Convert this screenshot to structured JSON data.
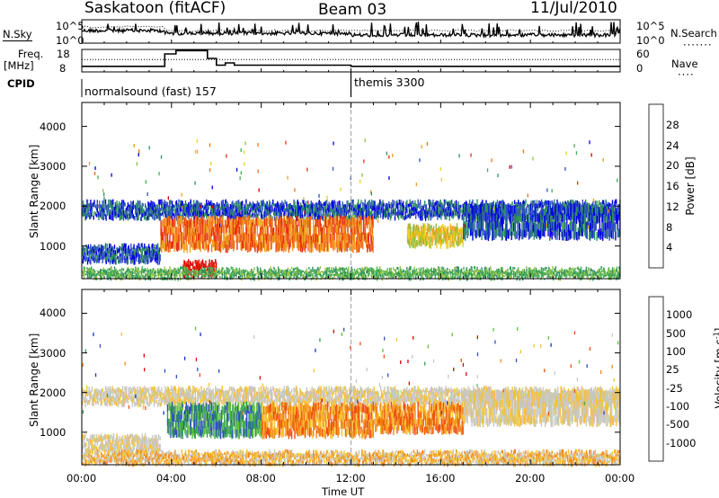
{
  "header": {
    "station": "Saskatoon (fitACF)",
    "beam": "Beam 03",
    "date": "11/Jul/2010"
  },
  "top_panels": {
    "nsky_label": "N.Sky",
    "nsky_ticks": [
      "10^5",
      "10^0"
    ],
    "nsearch_label": "N.Search",
    "nsearch_ticks": [
      "10^5",
      "10^0"
    ],
    "freq_label_1": "Freq.",
    "freq_label_2": "[MHz]",
    "freq_ticks": [
      "18",
      "8"
    ],
    "nave_label": "Nave",
    "nave_ticks": [
      "60",
      "0"
    ],
    "cpid_label": "CPID",
    "cpid_segments": [
      {
        "label": "normalsound (fast) 157",
        "start_hour": 0
      },
      {
        "label": "themis 3300",
        "start_hour": 12
      }
    ]
  },
  "chart_data": [
    {
      "type": "line",
      "title": "",
      "xlabel": "Time UT",
      "x_ticks": [
        "00:00",
        "04:00",
        "08:00",
        "12:00",
        "16:00",
        "20:00",
        "00:00"
      ],
      "xlim": [
        0,
        24
      ],
      "series": [
        {
          "name": "N.Sky",
          "note": "log scale 10^0 to 10^5"
        },
        {
          "name": "N.Search",
          "note": "log scale 10^0 to 10^5"
        }
      ]
    },
    {
      "type": "line",
      "xlim": [
        0,
        24
      ],
      "series": [
        {
          "name": "Freq.",
          "x": [
            0,
            3.7,
            3.7,
            4.2,
            4.2,
            5.0,
            5.0,
            5.6,
            5.6,
            6.0,
            6.0,
            6.4,
            6.4,
            6.8,
            6.8,
            12,
            12,
            24
          ],
          "values": [
            10.5,
            10.5,
            16,
            16,
            17.5,
            17.5,
            17.5,
            17.5,
            14,
            14,
            11,
            11,
            12,
            12,
            11,
            11,
            10.5,
            10.5
          ]
        },
        {
          "name": "Nave",
          "x": [
            0,
            24
          ],
          "values": [
            33,
            33
          ]
        }
      ],
      "ylim_freq": [
        8,
        18
      ],
      "ylim_nave": [
        0,
        60
      ]
    },
    {
      "type": "heatmap",
      "ylabel": "Slant Range [km]",
      "y_ticks": [
        "4000",
        "3000",
        "2000",
        "1000"
      ],
      "ylim": [
        180,
        4600
      ],
      "xlim": [
        0,
        24
      ],
      "colorbar_label": "Power [dB]",
      "colorbar_ticks": [
        "28",
        "24",
        "20",
        "16",
        "12",
        "8",
        "4"
      ],
      "colorbar_colors": [
        "#0000e0",
        "#3050c0",
        "#2f8f60",
        "#40b050",
        "#90c040",
        "#e8d020",
        "#f0a020",
        "#f07018",
        "#e83010",
        "#d80000"
      ],
      "bands": [
        {
          "t0": 0,
          "t1": 24,
          "r0": 1700,
          "r1": 2100,
          "level": 1
        },
        {
          "t0": 0,
          "t1": 3.5,
          "r0": 600,
          "r1": 1000,
          "level": 1
        },
        {
          "t0": 3.5,
          "t1": 13,
          "r0": 900,
          "r1": 1700,
          "level": 7
        },
        {
          "t0": 4.5,
          "t1": 6.0,
          "r0": 250,
          "r1": 600,
          "level": 9
        },
        {
          "t0": 14.5,
          "t1": 17,
          "r0": 1000,
          "r1": 1500,
          "level": 5
        },
        {
          "t0": 17,
          "t1": 24,
          "r0": 1200,
          "r1": 2000,
          "level": 1
        },
        {
          "t0": 0,
          "t1": 24,
          "r0": 200,
          "r1": 420,
          "level": 3
        }
      ]
    },
    {
      "type": "heatmap",
      "ylabel": "Slant Range [km]",
      "y_ticks": [
        "4000",
        "3000",
        "2000",
        "1000"
      ],
      "ylim": [
        180,
        4600
      ],
      "xlim": [
        0,
        24
      ],
      "colorbar_label": "Velocity [m s^-1]",
      "colorbar_ticks": [
        "1000",
        "500",
        "100",
        "25",
        "-25",
        "-100",
        "-500",
        "-1000"
      ],
      "colorbar_colors": [
        "#e00000",
        "#f05010",
        "#f08c18",
        "#f8c030",
        "#c8c8c0",
        "#c8c8c0",
        "#60c040",
        "#30a050",
        "#3050c0",
        "#1030d0"
      ],
      "bands": [
        {
          "t0": 0,
          "t1": 24,
          "r0": 1700,
          "r1": 2100,
          "level": 4
        },
        {
          "t0": 0,
          "t1": 3.5,
          "r0": 500,
          "r1": 900,
          "level": 4
        },
        {
          "t0": 3.8,
          "t1": 8,
          "r0": 900,
          "r1": 1700,
          "level": 7
        },
        {
          "t0": 8,
          "t1": 13,
          "r0": 900,
          "r1": 1700,
          "level": 2
        },
        {
          "t0": 13,
          "t1": 17,
          "r0": 1000,
          "r1": 1700,
          "level": 2
        },
        {
          "t0": 17,
          "t1": 24,
          "r0": 1200,
          "r1": 2000,
          "level": 4
        },
        {
          "t0": 0,
          "t1": 24,
          "r0": 200,
          "r1": 500,
          "level": 3
        }
      ]
    }
  ]
}
